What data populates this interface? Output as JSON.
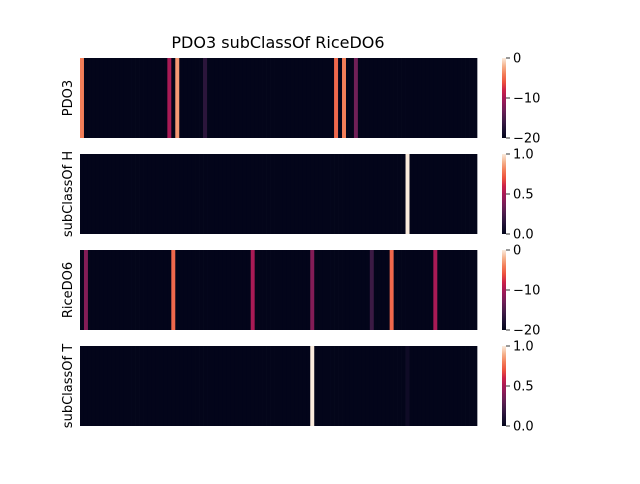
{
  "title": "PDO3 subClassOf RiceDO6",
  "chart_data": [
    {
      "type": "heatmap",
      "panel": 1,
      "ylabel": "PDO3",
      "columns": 100,
      "default_value": -20,
      "vmin": -20,
      "vmax": 0,
      "colorbar_ticks": [
        0,
        -10,
        -20
      ],
      "colorbar_tick_labels": [
        "0",
        "−10",
        "−20"
      ],
      "highlight_columns": [
        {
          "index": 0,
          "value": -4
        },
        {
          "index": 22,
          "value": -10
        },
        {
          "index": 24,
          "value": -3
        },
        {
          "index": 31,
          "value": -17
        },
        {
          "index": 64,
          "value": -5
        },
        {
          "index": 66,
          "value": -4
        },
        {
          "index": 69,
          "value": -13
        }
      ]
    },
    {
      "type": "heatmap",
      "panel": 2,
      "ylabel": "subClassOf H",
      "columns": 100,
      "default_value": 0.0,
      "vmin": 0.0,
      "vmax": 1.0,
      "colorbar_ticks": [
        1.0,
        0.5,
        0.0
      ],
      "colorbar_tick_labels": [
        "1.0",
        "0.5",
        "0.0"
      ],
      "highlight_columns": [
        {
          "index": 82,
          "value": 1.0
        }
      ]
    },
    {
      "type": "heatmap",
      "panel": 3,
      "ylabel": "RiceDO6",
      "columns": 100,
      "default_value": -20,
      "vmin": -20,
      "vmax": 0,
      "colorbar_ticks": [
        0,
        -10,
        -20
      ],
      "colorbar_tick_labels": [
        "0",
        "−10",
        "−20"
      ],
      "highlight_columns": [
        {
          "index": 1,
          "value": -12
        },
        {
          "index": 23,
          "value": -5
        },
        {
          "index": 43,
          "value": -10
        },
        {
          "index": 58,
          "value": -12
        },
        {
          "index": 73,
          "value": -16
        },
        {
          "index": 78,
          "value": -5
        },
        {
          "index": 89,
          "value": -10
        }
      ]
    },
    {
      "type": "heatmap",
      "panel": 4,
      "ylabel": "subClassOf T",
      "columns": 100,
      "default_value": 0.0,
      "vmin": 0.0,
      "vmax": 1.0,
      "colorbar_ticks": [
        1.0,
        0.5,
        0.0
      ],
      "colorbar_tick_labels": [
        "1.0",
        "0.5",
        "0.0"
      ],
      "highlight_columns": [
        {
          "index": 58,
          "value": 1.0
        },
        {
          "index": 82,
          "value": 0.05
        }
      ]
    }
  ]
}
